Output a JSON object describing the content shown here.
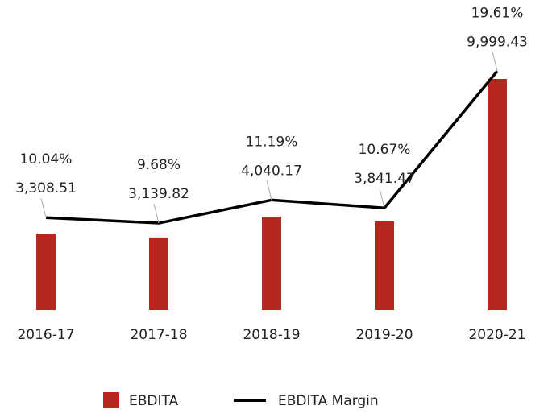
{
  "chart_data": {
    "type": "bar",
    "categories": [
      "2016-17",
      "2017-18",
      "2018-19",
      "2019-20",
      "2020-21"
    ],
    "series": [
      {
        "name": "EBDITA",
        "type": "bar",
        "color": "#b5261e",
        "values": [
          3308.51,
          3139.82,
          4040.17,
          3841.47,
          9999.43
        ],
        "value_labels": [
          "3,308.51",
          "3,139.82",
          "4,040.17",
          "3,841.47",
          "9,999.43"
        ]
      },
      {
        "name": "EBDITA Margin",
        "type": "line",
        "axis": "y2",
        "color": "#000000",
        "values": [
          10.04,
          9.68,
          11.19,
          10.67,
          19.61
        ],
        "value_labels": [
          "10.04%",
          "9.68%",
          "11.19%",
          "10.67%",
          "19.61%"
        ]
      }
    ],
    "ylim": [
      0,
      10000
    ],
    "y2lim": [
      4,
      19.1
    ],
    "legend": "bottom"
  }
}
